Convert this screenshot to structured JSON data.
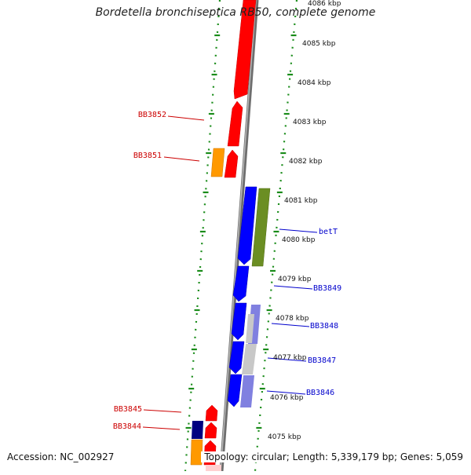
{
  "title": "Bordetella bronchiseptica RB50, complete genome",
  "footer": {
    "accession_text": "Accession: NC_002927",
    "summary_text": "Topology: circular; Length: 5,339,179 bp; Genes: 5,059"
  },
  "colors": {
    "forward_strand": "#ff0000",
    "reverse_strand": "#0000ff",
    "orange_feature": "#ff9900",
    "green_feature": "#6b8e23",
    "navy_feature": "#000080",
    "light_blue_feature": "#8080e0",
    "grey_feature": "#c8c8c8",
    "backbone": "#808080",
    "ruler_ticks": "#1a8c1a",
    "forward_label": "#cc0000",
    "reverse_label": "#0000cc"
  },
  "ruler": {
    "tick_labels": [
      "4086 kbp",
      "4085 kbp",
      "4084 kbp",
      "4083 kbp",
      "4082 kbp",
      "4081 kbp",
      "4080 kbp",
      "4079 kbp",
      "4078 kbp",
      "4077 kbp",
      "4076 kbp",
      "4075 kbp"
    ]
  },
  "gene_labels": {
    "forward": [
      "BB3852",
      "BB3851",
      "BB3845",
      "BB3844"
    ],
    "reverse": [
      "betT",
      "BB3849",
      "BB3848",
      "BB3847",
      "BB3846"
    ]
  }
}
